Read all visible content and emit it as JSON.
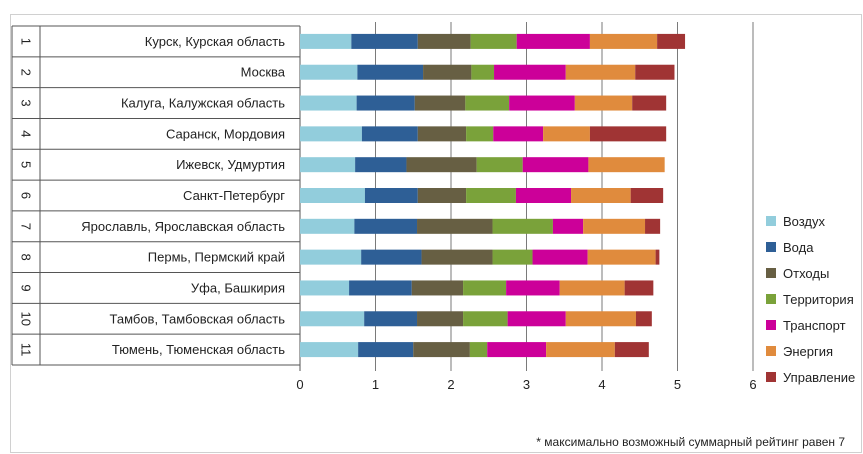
{
  "chart_data": {
    "type": "bar",
    "orientation": "horizontal",
    "stacked": true,
    "title": "",
    "xlim": [
      0,
      6
    ],
    "x_ticks": [
      "0",
      "1",
      "2",
      "3",
      "4",
      "5",
      "6"
    ],
    "grid": "vertical",
    "legend_position": "right",
    "ranks": [
      "1",
      "2",
      "3",
      "4",
      "5",
      "6",
      "7",
      "8",
      "9",
      "10",
      "11"
    ],
    "categories": [
      "Курск, Курская область",
      "Москва",
      "Калуга, Калужская область",
      "Саранск, Мордовия",
      "Ижевск, Удмуртия",
      "Санкт-Петербург",
      "Ярославль, Ярославская область",
      "Пермь, Пермский край",
      "Уфа, Башкирия",
      "Тамбов, Тамбовская область",
      "Тюмень, Тюменская область"
    ],
    "series": [
      {
        "name": "Воздух",
        "color": "#92cddc",
        "values": [
          0.68,
          0.76,
          0.75,
          0.82,
          0.73,
          0.86,
          0.72,
          0.81,
          0.65,
          0.85,
          0.77
        ]
      },
      {
        "name": "Вода",
        "color": "#2e5f96",
        "values": [
          0.88,
          0.87,
          0.77,
          0.74,
          0.68,
          0.7,
          0.83,
          0.8,
          0.83,
          0.7,
          0.73
        ]
      },
      {
        "name": "Отходы",
        "color": "#675f43",
        "values": [
          0.7,
          0.64,
          0.67,
          0.64,
          0.93,
          0.64,
          1.0,
          0.94,
          0.68,
          0.61,
          0.75
        ]
      },
      {
        "name": "Территория",
        "color": "#7aa23a",
        "values": [
          0.61,
          0.3,
          0.58,
          0.36,
          0.61,
          0.66,
          0.8,
          0.53,
          0.57,
          0.59,
          0.23
        ]
      },
      {
        "name": "Транспорт",
        "color": "#cc0099",
        "values": [
          0.97,
          0.95,
          0.87,
          0.66,
          0.87,
          0.73,
          0.4,
          0.73,
          0.71,
          0.77,
          0.78
        ]
      },
      {
        "name": "Энергия",
        "color": "#e08b3d",
        "values": [
          0.89,
          0.92,
          0.76,
          0.62,
          1.01,
          0.79,
          0.82,
          0.9,
          0.86,
          0.93,
          0.91
        ]
      },
      {
        "name": "Управление",
        "color": "#a03434",
        "values": [
          0.37,
          0.52,
          0.45,
          1.01,
          0.0,
          0.43,
          0.2,
          0.05,
          0.38,
          0.21,
          0.45
        ]
      }
    ],
    "footnote": "* максимально возможный суммарный рейтинг равен 7"
  }
}
